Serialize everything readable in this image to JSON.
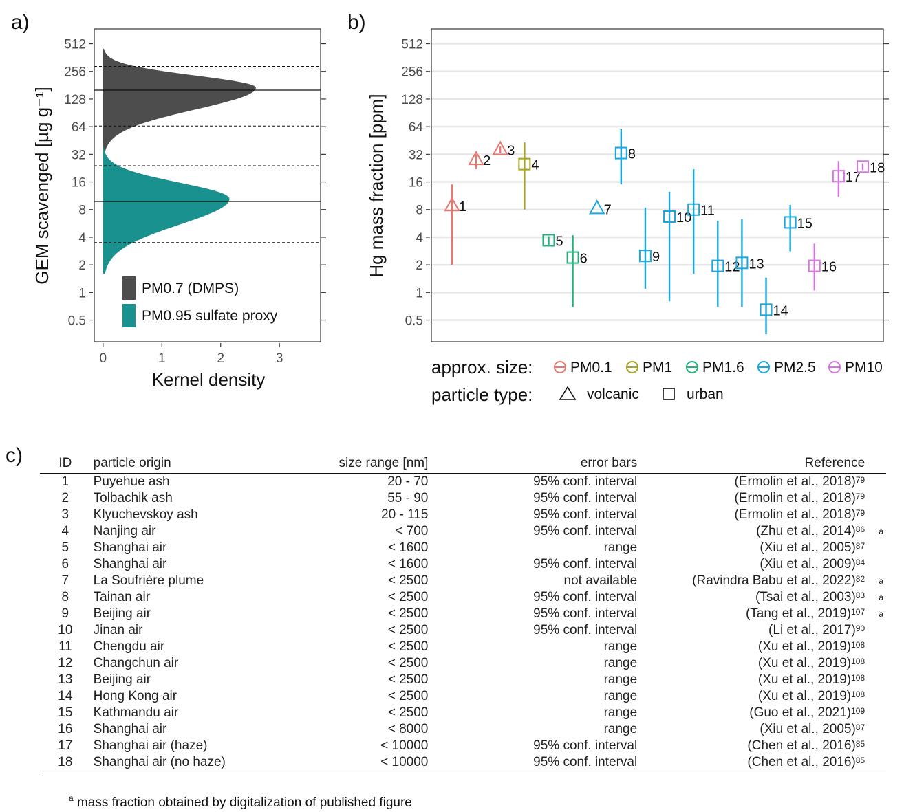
{
  "panels": {
    "a": "a)",
    "b": "b)",
    "c": "c)"
  },
  "chart_data": [
    {
      "id": "a",
      "type": "area",
      "ylabel": "GEM scavenged [µg g⁻¹]",
      "xlabel": "Kernel density",
      "y_scale": "log2",
      "y_ticks": [
        0.5,
        1,
        2,
        4,
        8,
        16,
        32,
        64,
        128,
        256,
        512
      ],
      "x_ticks": [
        0,
        1,
        2,
        3
      ],
      "xlim": [
        -0.15,
        3.7
      ],
      "series": [
        {
          "name": "PM0.7 (DMPS)",
          "color": "#4d4d4d",
          "y_min": 35,
          "y_max": 450,
          "peak_y": 170,
          "peak_density": 2.6,
          "median": 160,
          "ci": [
            65,
            290
          ]
        },
        {
          "name": "PM0.95 sulfate proxy",
          "color": "#18918f",
          "y_min": 1.6,
          "y_max": 38,
          "peak_y": 10.5,
          "peak_density": 2.15,
          "median": 9.8,
          "ci": [
            3.5,
            24
          ]
        }
      ],
      "legend_position": "bottom-left"
    },
    {
      "id": "b",
      "type": "scatter",
      "ylabel": "Hg mass fraction [ppm]",
      "y_scale": "log2",
      "y_ticks": [
        0.5,
        1,
        2,
        4,
        8,
        16,
        32,
        64,
        128,
        256,
        512
      ],
      "points": [
        {
          "id": "1",
          "y": 8.8,
          "lo": 2.0,
          "hi": 15,
          "size": "PM0.1",
          "type": "volcanic"
        },
        {
          "id": "2",
          "y": 28,
          "lo": 22,
          "hi": 32,
          "size": "PM0.1",
          "type": "volcanic"
        },
        {
          "id": "3",
          "y": 36,
          "lo": 33,
          "hi": 39,
          "size": "PM0.1",
          "type": "volcanic"
        },
        {
          "id": "4",
          "y": 25,
          "lo": 8,
          "hi": 43,
          "size": "PM1",
          "type": "urban"
        },
        {
          "id": "5",
          "y": 3.7,
          "lo": 3.3,
          "hi": 4.1,
          "size": "PM1.6",
          "type": "urban"
        },
        {
          "id": "6",
          "y": 2.4,
          "lo": 0.7,
          "hi": 4.2,
          "size": "PM1.6",
          "type": "urban"
        },
        {
          "id": "7",
          "y": 8.2,
          "lo": null,
          "hi": null,
          "size": "PM2.5",
          "type": "volcanic"
        },
        {
          "id": "8",
          "y": 33,
          "lo": 15,
          "hi": 60,
          "size": "PM2.5",
          "type": "urban"
        },
        {
          "id": "9",
          "y": 2.5,
          "lo": 1.1,
          "hi": 8.4,
          "size": "PM2.5",
          "type": "urban"
        },
        {
          "id": "10",
          "y": 6.7,
          "lo": 0.8,
          "hi": 12.5,
          "size": "PM2.5",
          "type": "urban"
        },
        {
          "id": "11",
          "y": 8.0,
          "lo": 1.6,
          "hi": 22,
          "size": "PM2.5",
          "type": "urban"
        },
        {
          "id": "12",
          "y": 1.95,
          "lo": 0.7,
          "hi": 6.0,
          "size": "PM2.5",
          "type": "urban"
        },
        {
          "id": "13",
          "y": 2.1,
          "lo": 0.7,
          "hi": 6.3,
          "size": "PM2.5",
          "type": "urban"
        },
        {
          "id": "14",
          "y": 0.65,
          "lo": 0.35,
          "hi": 1.45,
          "size": "PM2.5",
          "type": "urban"
        },
        {
          "id": "15",
          "y": 5.8,
          "lo": 2.8,
          "hi": 9.0,
          "size": "PM2.5",
          "type": "urban"
        },
        {
          "id": "16",
          "y": 1.95,
          "lo": 1.05,
          "hi": 3.4,
          "size": "PM10",
          "type": "urban"
        },
        {
          "id": "17",
          "y": 18.5,
          "lo": 11,
          "hi": 27,
          "size": "PM10",
          "type": "urban"
        },
        {
          "id": "18",
          "y": 23.5,
          "lo": 21.5,
          "hi": 25.5,
          "size": "PM10",
          "type": "urban"
        }
      ],
      "size_legend": {
        "title": "approx. size:",
        "items": [
          {
            "label": "PM0.1",
            "color": "#e8776f"
          },
          {
            "label": "PM1",
            "color": "#a3a424"
          },
          {
            "label": "PM1.6",
            "color": "#22b27a"
          },
          {
            "label": "PM2.5",
            "color": "#17a8e0"
          },
          {
            "label": "PM10",
            "color": "#d674e0"
          }
        ]
      },
      "type_legend": {
        "title": "particle type:",
        "items": [
          {
            "label": "volcanic",
            "shape": "triangle"
          },
          {
            "label": "urban",
            "shape": "square"
          }
        ]
      },
      "legend_position": "bottom"
    }
  ],
  "table": {
    "headers": {
      "id": "ID",
      "origin": "particle origin",
      "size": "size range [nm]",
      "error": "error bars",
      "reference": "Reference"
    },
    "rows": [
      {
        "id": "1",
        "origin": "Puyehue ash",
        "size": "20 - 70",
        "error": "95% conf. interval",
        "reference": "(Ermolin et al., 2018)",
        "ref_num": "79",
        "note": ""
      },
      {
        "id": "2",
        "origin": "Tolbachik ash",
        "size": "55 - 90",
        "error": "95% conf. interval",
        "reference": "(Ermolin et al., 2018)",
        "ref_num": "79",
        "note": ""
      },
      {
        "id": "3",
        "origin": "Klyuchevskoy ash",
        "size": "20 - 115",
        "error": "95% conf. interval",
        "reference": "(Ermolin et al., 2018)",
        "ref_num": "79",
        "note": ""
      },
      {
        "id": "4",
        "origin": "Nanjing air",
        "size": "< 700",
        "error": "95% conf. interval",
        "reference": "(Zhu et al., 2014)",
        "ref_num": "86",
        "note": "a"
      },
      {
        "id": "5",
        "origin": "Shanghai air",
        "size": "< 1600",
        "error": "range",
        "reference": "(Xiu et al., 2005)",
        "ref_num": "87",
        "note": ""
      },
      {
        "id": "6",
        "origin": "Shanghai air",
        "size": "< 1600",
        "error": "95% conf. interval",
        "reference": "(Xiu et al., 2009)",
        "ref_num": "84",
        "note": ""
      },
      {
        "id": "7",
        "origin": "La Soufrière plume",
        "size": "< 2500",
        "error": "not available",
        "reference": "(Ravindra Babu et al., 2022)",
        "ref_num": "82",
        "note": "a"
      },
      {
        "id": "8",
        "origin": "Tainan air",
        "size": "< 2500",
        "error": "95% conf. interval",
        "reference": "(Tsai et al., 2003)",
        "ref_num": "83",
        "note": "a"
      },
      {
        "id": "9",
        "origin": "Beijing air",
        "size": "< 2500",
        "error": "95% conf. interval",
        "reference": "(Tang et al., 2019)",
        "ref_num": "107",
        "note": "a"
      },
      {
        "id": "10",
        "origin": "Jinan air",
        "size": "< 2500",
        "error": "95% conf. interval",
        "reference": "(Li et al., 2017)",
        "ref_num": "90",
        "note": ""
      },
      {
        "id": "11",
        "origin": "Chengdu air",
        "size": "< 2500",
        "error": "range",
        "reference": "(Xu et al., 2019)",
        "ref_num": "108",
        "note": ""
      },
      {
        "id": "12",
        "origin": "Changchun air",
        "size": "< 2500",
        "error": "range",
        "reference": "(Xu et al., 2019)",
        "ref_num": "108",
        "note": ""
      },
      {
        "id": "13",
        "origin": "Beijing air",
        "size": "< 2500",
        "error": "range",
        "reference": "(Xu et al., 2019)",
        "ref_num": "108",
        "note": ""
      },
      {
        "id": "14",
        "origin": "Hong Kong air",
        "size": "< 2500",
        "error": "range",
        "reference": "(Xu et al., 2019)",
        "ref_num": "108",
        "note": ""
      },
      {
        "id": "15",
        "origin": "Kathmandu air",
        "size": "< 2500",
        "error": "range",
        "reference": "(Guo et al., 2021)",
        "ref_num": "109",
        "note": ""
      },
      {
        "id": "16",
        "origin": "Shanghai air",
        "size": "< 8000",
        "error": "range",
        "reference": "(Xiu et al., 2005)",
        "ref_num": "87",
        "note": ""
      },
      {
        "id": "17",
        "origin": "Shanghai air (haze)",
        "size": "< 10000",
        "error": "95% conf. interval",
        "reference": "(Chen et al., 2016)",
        "ref_num": "85",
        "note": ""
      },
      {
        "id": "18",
        "origin": "Shanghai air (no haze)",
        "size": "< 10000",
        "error": "95% conf. interval",
        "reference": "(Chen et al., 2016)",
        "ref_num": "85",
        "note": ""
      }
    ],
    "footnote": {
      "mark": "a",
      "text": "mass fraction obtained by digitalization of published figure"
    }
  }
}
